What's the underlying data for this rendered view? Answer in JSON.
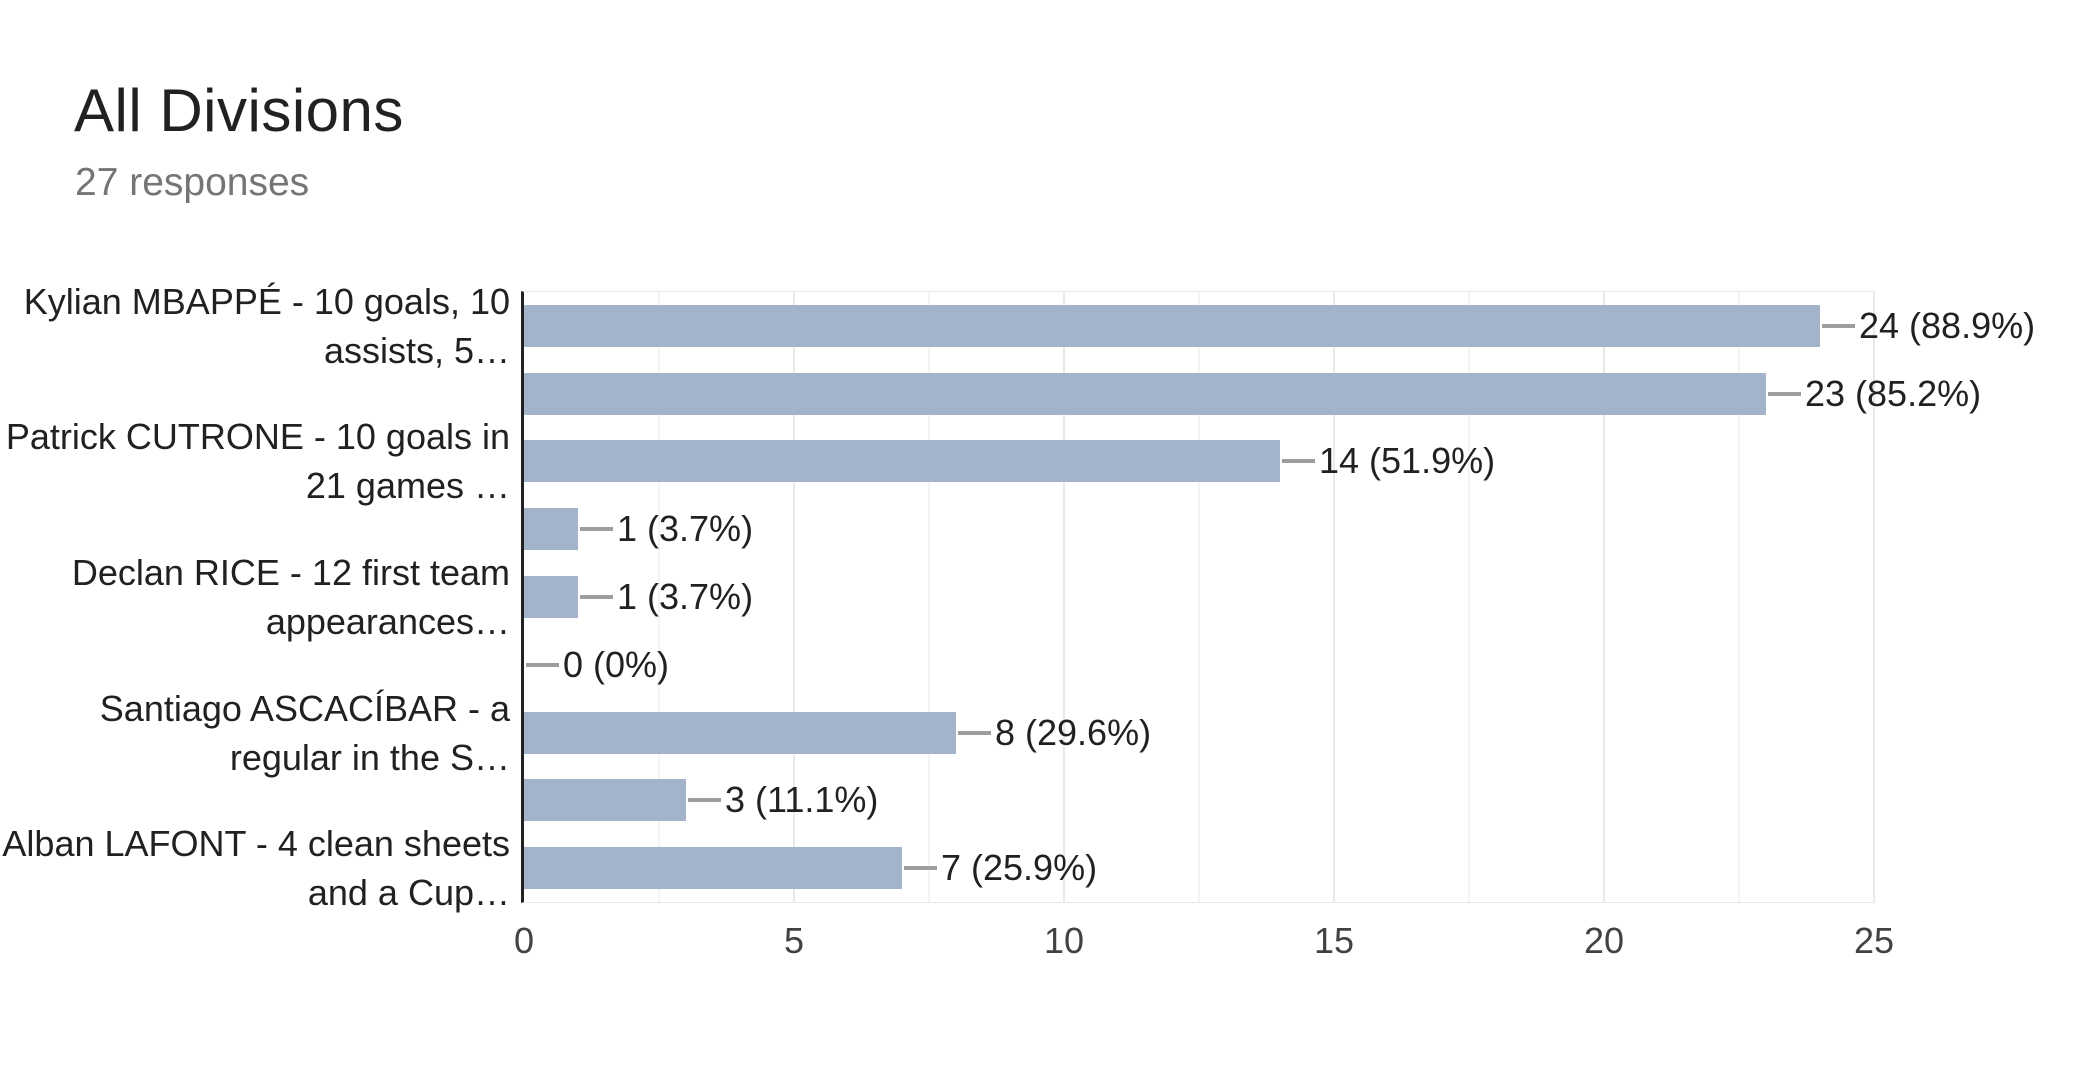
{
  "header": {
    "title": "All Divisions",
    "subtitle": "27 responses"
  },
  "chart_data": {
    "type": "bar",
    "orientation": "horizontal",
    "title": "All Divisions",
    "subtitle": "27 responses",
    "total_responses": 27,
    "xlim": [
      0,
      25
    ],
    "xtick_step": 5,
    "minor_grid_step": 2.5,
    "grid": true,
    "legend": "none",
    "xticks": [
      "0",
      "5",
      "10",
      "15",
      "20",
      "25"
    ],
    "bars": [
      {
        "label_lines": [
          "Kylian MBAPPÉ - 10 goals, 10",
          "assists, 5…"
        ],
        "value": 24,
        "value_label": "24 (88.9%)"
      },
      {
        "label_lines": [],
        "value": 23,
        "value_label": "23 (85.2%)"
      },
      {
        "label_lines": [
          "Patrick CUTRONE - 10 goals in",
          "21 games …"
        ],
        "value": 14,
        "value_label": "14 (51.9%)"
      },
      {
        "label_lines": [],
        "value": 1,
        "value_label": "1 (3.7%)"
      },
      {
        "label_lines": [
          "Declan RICE - 12 first team",
          "appearances…"
        ],
        "value": 1,
        "value_label": "1 (3.7%)"
      },
      {
        "label_lines": [],
        "value": 0,
        "value_label": "0 (0%)"
      },
      {
        "label_lines": [
          "Santiago ASCACÍBAR - a",
          "regular in the S…"
        ],
        "value": 8,
        "value_label": "8 (29.6%)"
      },
      {
        "label_lines": [],
        "value": 3,
        "value_label": "3 (11.1%)"
      },
      {
        "label_lines": [
          "Alban LAFONT - 4 clean sheets",
          "and a Cup…"
        ],
        "value": 7,
        "value_label": "7 (25.9%)"
      }
    ],
    "colors": {
      "bar": "#a3b3ca",
      "connector": "#9e9e9e",
      "axis": "#212121",
      "grid_major": "#e9e9e9",
      "grid_minor": "#f4f4f4",
      "title_text": "#212121",
      "subtitle_text": "#757575",
      "label_text": "#212121",
      "tick_text": "#424242",
      "background": "#ffffff"
    }
  }
}
